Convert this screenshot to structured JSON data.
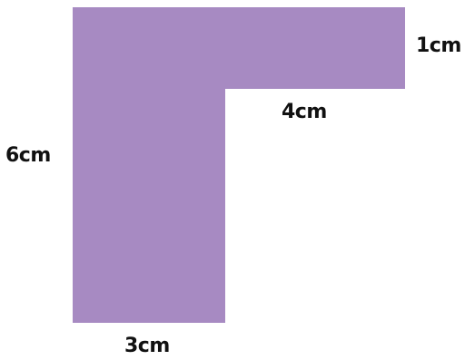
{
  "shape": {
    "name": "L-shape",
    "fill_color": "#a78ac2"
  },
  "labels": {
    "top_right_height": "1cm",
    "inner_width": "4cm",
    "left_height": "6cm",
    "bottom_width": "3cm"
  }
}
